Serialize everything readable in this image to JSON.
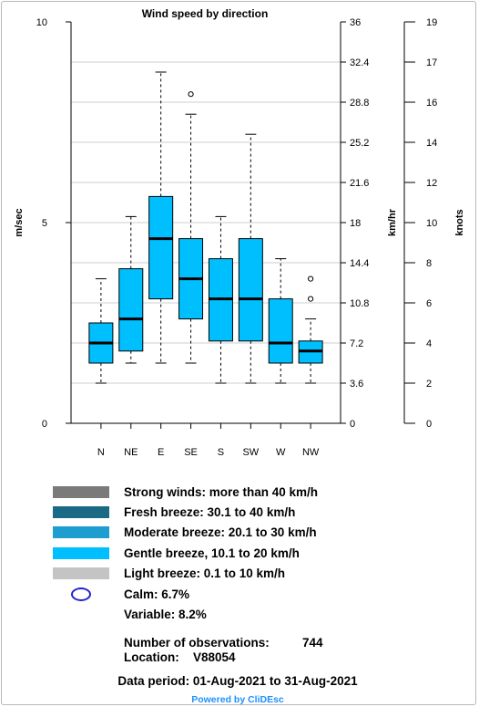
{
  "chart_data": {
    "type": "boxplot",
    "title": "Wind speed by direction",
    "ylabel": "m/sec",
    "ylabel_right": "km/hr",
    "ylabel_right2": "knots",
    "ylim": [
      0,
      10
    ],
    "yticks": [
      "0",
      "5",
      "10"
    ],
    "kmh_ticks": [
      "0",
      "3.6",
      "7.2",
      "10.8",
      "14.4",
      "18",
      "21.6",
      "25.2",
      "28.8",
      "32.4",
      "36"
    ],
    "knots_ticks": [
      "0",
      "2",
      "4",
      "6",
      "8",
      "10",
      "12",
      "14",
      "16",
      "17",
      "19"
    ],
    "categories": [
      "N",
      "NE",
      "E",
      "SE",
      "S",
      "SW",
      "W",
      "NW"
    ],
    "box_color": "#00bfff",
    "boxes": [
      {
        "whisker_low": 1.0,
        "q1": 1.5,
        "median": 2.0,
        "q3": 2.5,
        "whisker_high": 3.6,
        "outliers": []
      },
      {
        "whisker_low": 1.5,
        "q1": 1.8,
        "median": 2.6,
        "q3": 3.85,
        "whisker_high": 5.15,
        "outliers": []
      },
      {
        "whisker_low": 1.5,
        "q1": 3.1,
        "median": 4.6,
        "q3": 5.65,
        "whisker_high": 8.75,
        "outliers": []
      },
      {
        "whisker_low": 1.5,
        "q1": 2.6,
        "median": 3.6,
        "q3": 4.6,
        "whisker_high": 7.7,
        "outliers": [
          8.2
        ]
      },
      {
        "whisker_low": 1.0,
        "q1": 2.05,
        "median": 3.1,
        "q3": 4.1,
        "whisker_high": 5.15,
        "outliers": []
      },
      {
        "whisker_low": 1.0,
        "q1": 2.05,
        "median": 3.1,
        "q3": 4.6,
        "whisker_high": 7.2,
        "outliers": []
      },
      {
        "whisker_low": 1.0,
        "q1": 1.5,
        "median": 2.0,
        "q3": 3.1,
        "whisker_high": 4.1,
        "outliers": []
      },
      {
        "whisker_low": 1.0,
        "q1": 1.5,
        "median": 1.8,
        "q3": 2.05,
        "whisker_high": 2.6,
        "outliers": [
          3.1,
          3.6
        ]
      }
    ],
    "grid": true
  },
  "legend": [
    {
      "label": "Strong winds: more than 40 km/h",
      "color": "#7a7a7a"
    },
    {
      "label": "Fresh breeze: 30.1 to 40 km/h",
      "color": "#1a6a86"
    },
    {
      "label": "Moderate breeze: 20.1 to 30 km/h",
      "color": "#1e9ed0"
    },
    {
      "label": "Gentle breeze, 10.1 to 20 km/h",
      "color": "#00bfff"
    },
    {
      "label": "Light breeze: 0.1 to 10 km/h",
      "color": "#c4c4c4"
    }
  ],
  "calm_label": "Calm: 6.7%",
  "variable_label": "Variable: 8.2%",
  "observations_label": "Number of observations:",
  "observations_value": "744",
  "location_label": "Location:",
  "location_value": "V88054",
  "data_period": "Data period: 01-Aug-2021 to 31-Aug-2021",
  "powered_by": "Powered by CliDEsc"
}
